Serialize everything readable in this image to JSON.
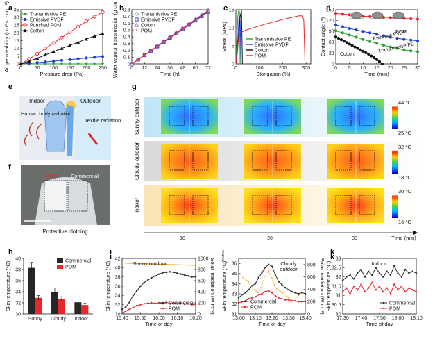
{
  "panel_labels": [
    "a",
    "b",
    "c",
    "d",
    "e",
    "f",
    "g",
    "h",
    "i",
    "j",
    "k"
  ],
  "colors": {
    "green": "#2ca02c",
    "blue": "#1f3fd6",
    "red": "#e8262b",
    "black": "#111111",
    "orange": "#f39c12",
    "commercial": "#262626",
    "pom": "#e8262b"
  },
  "chart_data": [
    {
      "id": "a",
      "type": "line",
      "xlabel": "Pressure drop (Pa)",
      "ylabel": "Air permeability (cm³ s⁻¹ cm⁻²)",
      "xlim": [
        0,
        250
      ],
      "ylim": [
        0,
        35
      ],
      "xticks": [
        0,
        50,
        100,
        150,
        200,
        250
      ],
      "yticks": [
        0,
        5,
        10,
        15,
        20,
        25,
        30,
        35
      ],
      "x": [
        0,
        25,
        50,
        75,
        100,
        125,
        150,
        175,
        200,
        225,
        250
      ],
      "series": [
        {
          "name": "Transmissive PE",
          "color": "#2ca02c",
          "marker": "tri-down",
          "values": [
            0,
            0,
            0,
            0,
            0,
            0,
            0,
            0,
            0,
            0,
            0
          ]
        },
        {
          "name": "Emissive PVDF",
          "color": "#1f3fd6",
          "marker": "circle",
          "values": [
            0,
            0.4,
            0.8,
            1.3,
            1.8,
            2.3,
            2.8,
            3.3,
            3.8,
            4.3,
            4.8
          ]
        },
        {
          "name": "Punched POM",
          "color": "#e8262b",
          "marker": "circle-open",
          "values": [
            0,
            3.2,
            6.5,
            10,
            13.5,
            17,
            20.5,
            24,
            27.5,
            30.5,
            33.5
          ]
        },
        {
          "name": "Cotton",
          "color": "#111111",
          "marker": "tri-up",
          "values": [
            0,
            1.8,
            3.7,
            5.8,
            7.9,
            10,
            12,
            14,
            16,
            18,
            19.6
          ]
        }
      ]
    },
    {
      "id": "b",
      "type": "line",
      "xlabel": "Time (h)",
      "ylabel": "Water vapour transmission (g cm⁻²)",
      "xlim": [
        0,
        72
      ],
      "ylim": [
        0,
        0.8
      ],
      "xticks": [
        0,
        12,
        24,
        36,
        48,
        60,
        72
      ],
      "yticks": [
        0,
        0.1,
        0.2,
        0.3,
        0.4,
        0.5,
        0.6,
        0.7,
        0.8
      ],
      "x": [
        0,
        6,
        12,
        18,
        24,
        30,
        36,
        42,
        48,
        54,
        60,
        66,
        72
      ],
      "series": [
        {
          "name": "Transmissive PE",
          "color": "#2ca02c",
          "marker": "circle-open",
          "values": [
            0,
            0.065,
            0.13,
            0.195,
            0.26,
            0.325,
            0.39,
            0.455,
            0.52,
            0.585,
            0.65,
            0.715,
            0.78
          ]
        },
        {
          "name": "Emissive PVDF",
          "color": "#1f3fd6",
          "marker": "square-open",
          "values": [
            0,
            0.064,
            0.128,
            0.192,
            0.256,
            0.32,
            0.384,
            0.448,
            0.512,
            0.576,
            0.64,
            0.704,
            0.768
          ]
        },
        {
          "name": "Cotton",
          "color": "#9b59b6",
          "marker": "tri-open",
          "values": [
            0,
            0.066,
            0.132,
            0.198,
            0.264,
            0.33,
            0.396,
            0.462,
            0.528,
            0.594,
            0.66,
            0.726,
            0.79
          ]
        },
        {
          "name": "POM",
          "color": "#e8262b",
          "marker": "star",
          "values": [
            0,
            0.065,
            0.13,
            0.195,
            0.26,
            0.325,
            0.39,
            0.455,
            0.52,
            0.585,
            0.65,
            0.715,
            0.785
          ]
        }
      ]
    },
    {
      "id": "c",
      "type": "line",
      "xlabel": "Elongation (%)",
      "ylabel": "Stress (MPa)",
      "xlim": [
        0,
        320
      ],
      "ylim": [
        0,
        15
      ],
      "xticks": [
        0,
        100,
        200,
        300
      ],
      "yticks": [
        0,
        5,
        10,
        15
      ],
      "series": [
        {
          "name": "Transmissive PE",
          "color": "#2ca02c",
          "x": [
            0,
            4,
            8,
            12,
            15,
            18
          ],
          "values": [
            0,
            7,
            13,
            15,
            14.5,
            0
          ]
        },
        {
          "name": "Emissive PVDF",
          "color": "#1f3fd6",
          "x": [
            0,
            5,
            10,
            14,
            18,
            22
          ],
          "values": [
            0,
            4,
            9,
            13.5,
            12,
            0
          ]
        },
        {
          "name": "Cotton",
          "color": "#111111",
          "x": [
            0,
            6,
            12,
            18,
            24,
            28
          ],
          "values": [
            0,
            3,
            8,
            13,
            15,
            0
          ]
        },
        {
          "name": "POM",
          "color": "#e8262b",
          "x": [
            0,
            8,
            15,
            40,
            80,
            120,
            160,
            200,
            240,
            270,
            285,
            290,
            295
          ],
          "values": [
            0,
            5,
            8.5,
            9.3,
            10.1,
            10.9,
            11.6,
            12.3,
            12.9,
            13.3,
            13.3,
            12,
            0
          ]
        }
      ]
    },
    {
      "id": "d",
      "type": "line",
      "xlabel": "Time (min)",
      "ylabel": "Contact angle (°)",
      "xlim": [
        0,
        30
      ],
      "ylim": [
        0,
        150
      ],
      "xticks": [
        0,
        5,
        10,
        15,
        20,
        25,
        30
      ],
      "yticks": [
        0,
        30,
        60,
        90,
        120,
        150
      ],
      "x": [
        0,
        2.5,
        5,
        7.5,
        10,
        12.5,
        15,
        17.5,
        20,
        22.5,
        25,
        27.5,
        30
      ],
      "annotations": [
        "POM",
        "Emissive PVDF",
        "Cotton",
        "Transmissive PE"
      ],
      "series": [
        {
          "name": "POM",
          "color": "#e8262b",
          "marker": "circle",
          "values": [
            140,
            138,
            136,
            134,
            132,
            131,
            130,
            129,
            128,
            127,
            126,
            125,
            124
          ]
        },
        {
          "name": "Emissive PVDF",
          "color": "#1f3fd6",
          "marker": "circle",
          "values": [
            108,
            103,
            98,
            94,
            90,
            86,
            82,
            78,
            74,
            71,
            68,
            66,
            64
          ]
        },
        {
          "name": "Transmissive PE",
          "color": "#2ca02c",
          "marker": "circle",
          "values": [
            92,
            86,
            80,
            74,
            68,
            62,
            57,
            52,
            47,
            43,
            39,
            36,
            34
          ]
        },
        {
          "name": "Cotton",
          "color": "#111111",
          "marker": "circle",
          "x": [
            0,
            1,
            2,
            3,
            4,
            5,
            6,
            7,
            8,
            9,
            10,
            11,
            12,
            13,
            14,
            15,
            16,
            17
          ],
          "values": [
            75,
            71,
            67,
            63,
            59,
            55,
            51,
            47,
            43,
            39,
            35,
            31,
            27,
            22,
            17,
            12,
            6,
            0
          ]
        }
      ]
    },
    {
      "id": "h",
      "type": "bar",
      "categories": [
        "Sunny",
        "Cloudy",
        "Indoor"
      ],
      "ylabel": "Skin temperature (°C)",
      "ylim": [
        30,
        40
      ],
      "yticks": [
        30,
        32,
        34,
        36,
        38,
        40
      ],
      "legend": [
        "Commercial",
        "POM"
      ],
      "series": [
        {
          "name": "Commercial",
          "color": "#262626",
          "values": [
            38.3,
            33.9,
            32.1
          ],
          "errors": [
            1.0,
            0.8,
            0.2
          ]
        },
        {
          "name": "POM",
          "color": "#e8262b",
          "values": [
            32.9,
            32.7,
            31.6
          ],
          "errors": [
            0.4,
            0.4,
            0.3
          ]
        }
      ]
    },
    {
      "id": "i",
      "type": "line",
      "title": "Sunny outdoor",
      "xlabel": "Time of day",
      "ylabel": "Skin temperature (°C)",
      "y2label": "Solar irradiation (W m⁻²)",
      "xlim": [
        0,
        40
      ],
      "ylim": [
        30,
        42
      ],
      "y2lim": [
        0,
        1000
      ],
      "xticks": [
        0,
        10,
        20,
        30,
        40
      ],
      "xticklabels": [
        "15:40",
        "15:50",
        "16:00",
        "16:10",
        "16:20"
      ],
      "yticks": [
        30,
        32,
        34,
        36,
        38,
        40,
        42
      ],
      "y2ticks": [
        0,
        200,
        400,
        600,
        800,
        1000
      ],
      "legend": [
        "Commercial",
        "POM"
      ],
      "series": [
        {
          "name": "Commercial",
          "color": "#262626",
          "x": [
            0,
            2,
            4,
            6,
            8,
            10,
            12,
            14,
            16,
            18,
            20,
            22,
            24,
            26,
            28,
            30,
            32,
            34,
            36,
            38,
            40
          ],
          "values": [
            31,
            31.5,
            32.5,
            34,
            35,
            36,
            36.8,
            37.3,
            37.8,
            38.2,
            38.6,
            38.9,
            39,
            39.1,
            39,
            38.8,
            38.6,
            38.4,
            38.2,
            38,
            38
          ]
        },
        {
          "name": "POM",
          "color": "#e8262b",
          "x": [
            0,
            2,
            4,
            6,
            8,
            10,
            12,
            14,
            16,
            18,
            20,
            22,
            24,
            26,
            28,
            30,
            32,
            34,
            36,
            38,
            40
          ],
          "values": [
            30.2,
            30.6,
            31,
            31.4,
            31.8,
            32,
            32.2,
            32.3,
            32.4,
            32.3,
            32.4,
            32.2,
            32.5,
            32.3,
            32.4,
            32.2,
            32.3,
            32.1,
            32.2,
            32,
            32
          ]
        },
        {
          "name": "Solar irradiation",
          "axis": "y2",
          "color": "#f39c12",
          "x": [
            0,
            5,
            10,
            15,
            20,
            25,
            30,
            35,
            40
          ],
          "values": [
            920,
            910,
            905,
            900,
            895,
            890,
            885,
            880,
            875
          ]
        }
      ]
    },
    {
      "id": "j",
      "type": "line",
      "title": "Cloudy outdoor",
      "xlabel": "Time of day",
      "ylabel": "Skin temperature (°C)",
      "y2label": "Solar irradiation (W m⁻²)",
      "xlim": [
        0,
        40
      ],
      "ylim": [
        31,
        36.5
      ],
      "y2lim": [
        0,
        900
      ],
      "xticks": [
        0,
        10,
        20,
        30,
        40
      ],
      "xticklabels": [
        "13:00",
        "13:10",
        "13:20",
        "13:30",
        "13:40"
      ],
      "yticks": [
        31,
        32,
        33,
        34,
        35,
        36
      ],
      "y2ticks": [
        0,
        200,
        400,
        600,
        800
      ],
      "legend": [
        "Commercial",
        "POM"
      ],
      "series": [
        {
          "name": "Commercial",
          "color": "#262626",
          "x": [
            0,
            2,
            4,
            6,
            8,
            10,
            12,
            14,
            16,
            18,
            20,
            22,
            24,
            26,
            28,
            30,
            32,
            34,
            36,
            38,
            40
          ],
          "values": [
            32.6,
            32.9,
            33.1,
            33.4,
            33.8,
            34,
            34.6,
            35.1,
            35.6,
            35.9,
            35.7,
            34.9,
            34.2,
            33.9,
            33.6,
            33.4,
            33.2,
            33.1,
            33,
            33.1,
            33
          ]
        },
        {
          "name": "POM",
          "color": "#e8262b",
          "x": [
            0,
            2,
            4,
            6,
            8,
            10,
            12,
            14,
            16,
            18,
            20,
            22,
            24,
            26,
            28,
            30,
            32,
            34,
            36,
            38,
            40
          ],
          "values": [
            32.1,
            32.2,
            32.3,
            32.5,
            32.6,
            32.7,
            32.9,
            33,
            33.2,
            33.3,
            33.1,
            32.8,
            32.6,
            32.5,
            32.4,
            32.4,
            32.3,
            32.3,
            32.2,
            32.2,
            32.2
          ]
        },
        {
          "name": "Solar irradiation",
          "axis": "y2",
          "color": "#f39c12",
          "x": [
            0,
            2,
            4,
            6,
            8,
            10,
            12,
            14,
            16,
            18,
            20,
            22,
            24,
            26,
            28,
            30,
            32,
            34,
            36,
            38,
            40
          ],
          "values": [
            650,
            600,
            560,
            520,
            430,
            380,
            330,
            480,
            620,
            700,
            580,
            430,
            380,
            350,
            300,
            260,
            200,
            240,
            300,
            360,
            420
          ]
        }
      ]
    },
    {
      "id": "k",
      "type": "line",
      "title": "Indoor",
      "xlabel": "Time of day",
      "ylabel": "Skin temperature (°C)",
      "xlim": [
        0,
        40
      ],
      "ylim": [
        30,
        33
      ],
      "xticks": [
        0,
        10,
        20,
        30,
        40
      ],
      "xticklabels": [
        "17:30",
        "17:40",
        "17:50",
        "18:00",
        "18:10"
      ],
      "yticks": [
        30,
        30.5,
        31,
        31.5,
        32,
        32.5,
        33
      ],
      "legend": [
        "Commercial",
        "POM"
      ],
      "series": [
        {
          "name": "Commercial",
          "color": "#262626",
          "x": [
            0,
            2,
            4,
            6,
            8,
            10,
            12,
            14,
            16,
            18,
            20,
            22,
            24,
            26,
            28,
            30,
            32,
            34,
            36,
            38,
            40
          ],
          "values": [
            31.8,
            32,
            32.1,
            31.9,
            32.2,
            32.4,
            32,
            32.3,
            32.1,
            32.5,
            32.2,
            32,
            32.3,
            32.1,
            32.6,
            32.2,
            32,
            32.4,
            32.2,
            32.3,
            32.2
          ]
        },
        {
          "name": "POM",
          "color": "#e8262b",
          "x": [
            0,
            2,
            4,
            6,
            8,
            10,
            12,
            14,
            16,
            18,
            20,
            22,
            24,
            26,
            28,
            30,
            32,
            34,
            36,
            38,
            40
          ],
          "values": [
            31.2,
            31.4,
            31.1,
            31.5,
            31.3,
            31.6,
            31.2,
            31.4,
            31.7,
            31.3,
            31.5,
            31.2,
            31.4,
            31.1,
            31.6,
            31.3,
            31.5,
            31.2,
            31.4,
            31.3,
            31.2
          ]
        }
      ]
    }
  ],
  "panel_e": {
    "indoor": "Indoor",
    "outdoor": "Outdoor",
    "body_radiation": "Human body radiation",
    "textile_radiation": "Textile radiation"
  },
  "panel_f": {
    "pom": "POM",
    "commercial": "Commercial",
    "caption": "Protective clothing"
  },
  "panel_g": {
    "rows": [
      "Sunny outdoor",
      "Cloudy outdoor",
      "Indoor"
    ],
    "scale_max": [
      "44 °C",
      "32 °C",
      "30 °C"
    ],
    "scale_min": [
      "25 °C",
      "18 °C",
      "16 °C"
    ],
    "x_ticks": [
      "10",
      "20",
      "30"
    ],
    "x_label": "Time (min)"
  }
}
